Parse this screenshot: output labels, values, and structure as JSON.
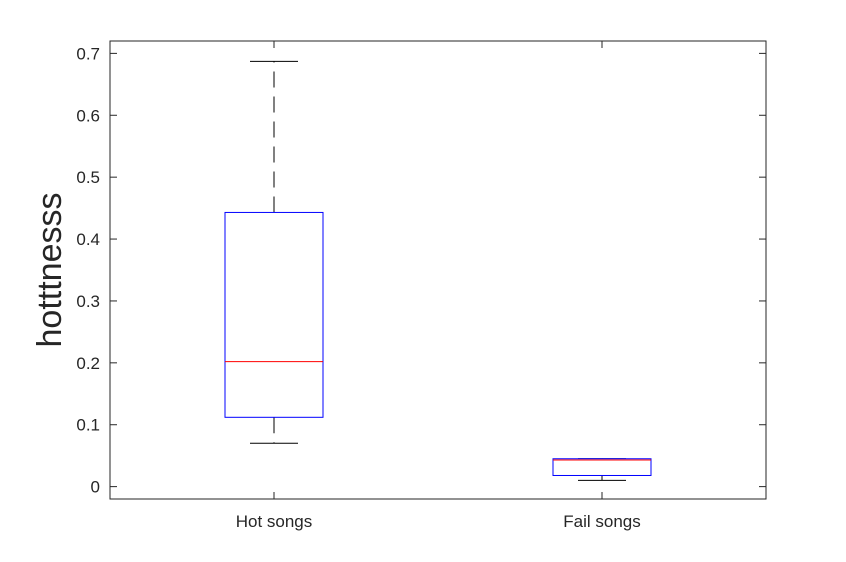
{
  "chart_data": {
    "type": "box",
    "title": "",
    "xlabel": "",
    "ylabel": "hotttnesss",
    "ylim": [
      -0.02,
      0.72
    ],
    "yticks": [
      0,
      0.1,
      0.2,
      0.3,
      0.4,
      0.5,
      0.6,
      0.7
    ],
    "ytick_labels": [
      "0",
      "0.1",
      "0.2",
      "0.3",
      "0.4",
      "0.5",
      "0.6",
      "0.7"
    ],
    "grid": false,
    "categories": [
      "Hot songs",
      "Fail songs"
    ],
    "boxes": [
      {
        "category": "Hot songs",
        "whisker_low": 0.07,
        "q1": 0.112,
        "median": 0.202,
        "q3": 0.443,
        "whisker_high": 0.687
      },
      {
        "category": "Fail songs",
        "whisker_low": 0.01,
        "q1": 0.018,
        "median": 0.043,
        "q3": 0.045,
        "whisker_high": 0.045
      }
    ],
    "colors": {
      "box": "#0000ff",
      "median": "#ff0000",
      "whisker": "#000000",
      "axes": "#262626"
    }
  }
}
